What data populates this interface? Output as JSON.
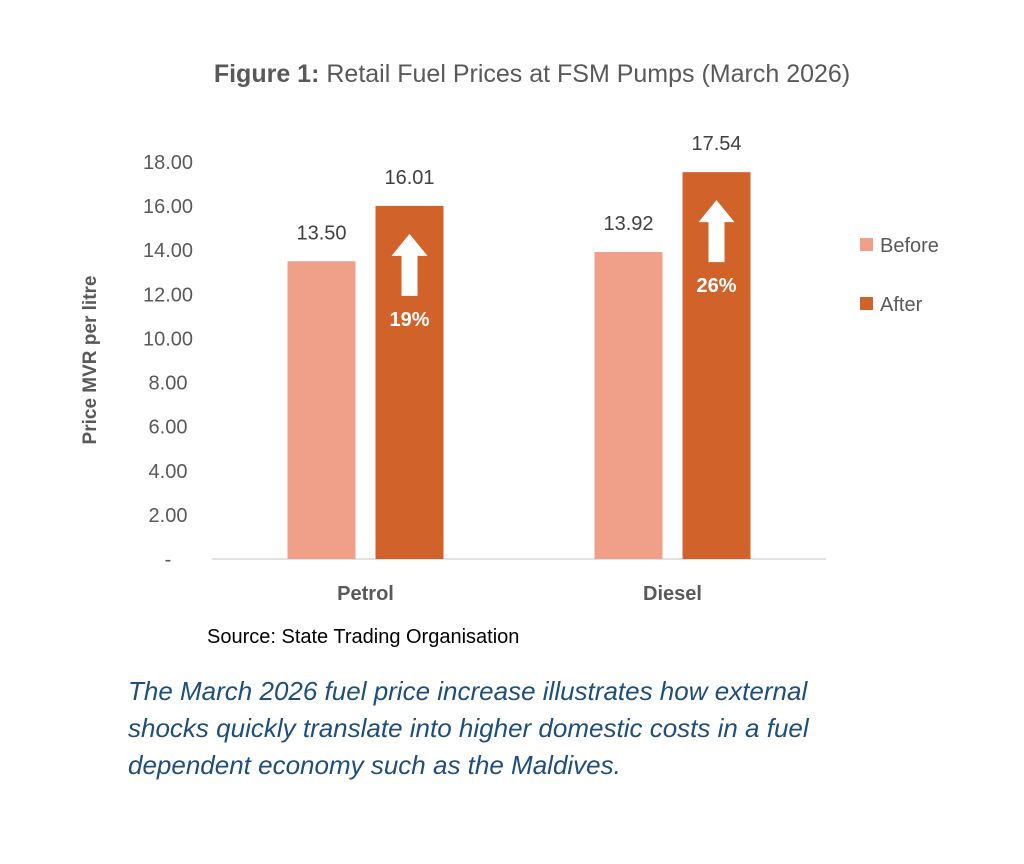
{
  "title": {
    "prefix": "Figure 1:",
    "text": "Retail Fuel Prices at FSM Pumps (March 2026)"
  },
  "source": "Source: State Trading Organisation",
  "caption": "The March 2026 fuel price increase illustrates how external shocks quickly translate into higher domestic costs in a fuel dependent economy such as the Maldives.",
  "colors": {
    "before": "#f0a088",
    "after": "#d0622a",
    "axis": "#d9d9d9",
    "text": "#595959",
    "caption": "#1f4e79"
  },
  "chart_data": {
    "type": "bar",
    "title": "Figure 1: Retail Fuel Prices at FSM Pumps (March 2026)",
    "xlabel": "",
    "ylabel": "Price MVR per litre",
    "ylim": [
      0,
      18
    ],
    "yticks": [
      "-",
      "2.00",
      "4.00",
      "6.00",
      "8.00",
      "10.00",
      "12.00",
      "14.00",
      "16.00",
      "18.00"
    ],
    "categories": [
      "Petrol",
      "Diesel"
    ],
    "series": [
      {
        "name": "Before",
        "values": [
          13.5,
          13.92
        ],
        "labels": [
          "13.50",
          "13.92"
        ]
      },
      {
        "name": "After",
        "values": [
          16.01,
          17.54
        ],
        "labels": [
          "16.01",
          "17.54"
        ]
      }
    ],
    "annotations": [
      {
        "category": "Petrol",
        "text": "19%",
        "icon": "up-arrow-icon"
      },
      {
        "category": "Diesel",
        "text": "26%",
        "icon": "up-arrow-icon"
      }
    ],
    "legend": "right",
    "grid": false
  }
}
